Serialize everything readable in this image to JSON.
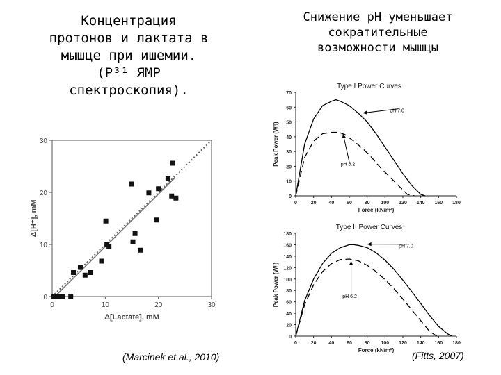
{
  "left_title": {
    "lines": [
      "Концентрация",
      "протонов и лактата в",
      "мышце при ишемии.",
      "(P³¹ ЯМР",
      "спектроскопия)."
    ]
  },
  "right_title": {
    "lines": [
      "Снижение pH уменьшает",
      "сократительные",
      "возможности мышцы"
    ]
  },
  "citations": {
    "left": "(Marcinek et.al., 2010)",
    "right": "(Fitts, 2007)"
  },
  "chart_data": [
    {
      "type": "scatter",
      "title": "",
      "xlabel": "Δ[Lactate], mM",
      "ylabel": "Δ[H⁺], mM",
      "xlim": [
        0,
        30
      ],
      "ylim": [
        0,
        30
      ],
      "xticks": [
        0,
        10,
        20,
        30
      ],
      "yticks": [
        0,
        10,
        20,
        30
      ],
      "grid": false,
      "points": [
        {
          "x": 0.2,
          "y": 0
        },
        {
          "x": 0.6,
          "y": 0
        },
        {
          "x": 1.0,
          "y": 0
        },
        {
          "x": 1.5,
          "y": 0
        },
        {
          "x": 2.0,
          "y": 0
        },
        {
          "x": 3.5,
          "y": 0
        },
        {
          "x": 4.0,
          "y": 4.6
        },
        {
          "x": 5.3,
          "y": 5.6
        },
        {
          "x": 6.2,
          "y": 4.1
        },
        {
          "x": 7.2,
          "y": 4.6
        },
        {
          "x": 9.3,
          "y": 6.8
        },
        {
          "x": 10.1,
          "y": 14.5
        },
        {
          "x": 10.3,
          "y": 10.0
        },
        {
          "x": 10.7,
          "y": 9.6
        },
        {
          "x": 14.9,
          "y": 21.6
        },
        {
          "x": 15.2,
          "y": 10.5
        },
        {
          "x": 15.6,
          "y": 12.1
        },
        {
          "x": 16.6,
          "y": 8.9
        },
        {
          "x": 18.2,
          "y": 19.9
        },
        {
          "x": 19.7,
          "y": 14.7
        },
        {
          "x": 20.0,
          "y": 20.7
        },
        {
          "x": 21.8,
          "y": 22.6
        },
        {
          "x": 22.6,
          "y": 25.6
        },
        {
          "x": 22.5,
          "y": 19.3
        },
        {
          "x": 23.3,
          "y": 18.9
        }
      ],
      "lines": [
        {
          "style": "solid",
          "from": [
            0.5,
            0
          ],
          "to": [
            23,
            22.7
          ]
        },
        {
          "style": "dotted",
          "from": [
            0,
            0
          ],
          "to": [
            30,
            30
          ]
        }
      ]
    },
    {
      "type": "line",
      "title": "Type I Power Curves",
      "xlabel": "Force (kN/m²)",
      "ylabel": "Peak Power (W/l)",
      "xlim": [
        0,
        180
      ],
      "ylim": [
        0,
        70
      ],
      "xticks": [
        0,
        20,
        40,
        60,
        80,
        100,
        120,
        140,
        160,
        180
      ],
      "yticks": [
        0,
        10,
        20,
        30,
        40,
        50,
        60,
        70
      ],
      "series": [
        {
          "name": "pH 7.0",
          "style": "solid",
          "x": [
            0,
            10,
            20,
            30,
            40,
            45,
            50,
            60,
            70,
            80,
            90,
            100,
            110,
            120,
            130,
            140,
            145
          ],
          "values": [
            0,
            35,
            52,
            61,
            64,
            65,
            64,
            61,
            56,
            50,
            42,
            33,
            24,
            15,
            7,
            1,
            0
          ]
        },
        {
          "name": "pH 6.2",
          "style": "dashed",
          "x": [
            0,
            10,
            20,
            30,
            40,
            48,
            55,
            65,
            75,
            85,
            95,
            105,
            115,
            125,
            133
          ],
          "values": [
            0,
            26,
            37,
            42,
            43,
            43,
            41.5,
            37,
            32,
            26,
            19,
            13,
            7,
            1,
            0
          ]
        }
      ],
      "annotations": [
        {
          "text": "pH 7.0",
          "point": [
            75,
            56
          ],
          "label_at": [
            115,
            57
          ]
        },
        {
          "text": "pH 6.2",
          "point": [
            53,
            42
          ],
          "label_at": [
            60,
            21
          ]
        }
      ]
    },
    {
      "type": "line",
      "title": "Type II Power Curves",
      "xlabel": "Force (kN/m²)",
      "ylabel": "Peak Power (W/l)",
      "xlim": [
        0,
        180
      ],
      "ylim": [
        0,
        180
      ],
      "xticks": [
        0,
        20,
        40,
        60,
        80,
        100,
        120,
        140,
        160,
        180
      ],
      "yticks": [
        0,
        20,
        40,
        60,
        80,
        100,
        120,
        140,
        160,
        180
      ],
      "series": [
        {
          "name": "pH 7.0",
          "style": "solid",
          "x": [
            0,
            10,
            20,
            30,
            40,
            50,
            60,
            65,
            70,
            80,
            90,
            100,
            110,
            120,
            130,
            140,
            150,
            160,
            170,
            175
          ],
          "values": [
            0,
            62,
            100,
            127,
            145,
            155,
            160,
            160,
            159,
            155,
            146,
            133,
            117,
            98,
            78,
            57,
            36,
            17,
            4,
            0
          ]
        },
        {
          "name": "pH 6.2",
          "style": "dashed",
          "x": [
            0,
            10,
            20,
            30,
            40,
            50,
            60,
            70,
            80,
            90,
            100,
            110,
            120,
            130,
            140,
            150,
            158
          ],
          "values": [
            0,
            55,
            90,
            113,
            127,
            134,
            135,
            132,
            124,
            113,
            99,
            83,
            65,
            46,
            27,
            8,
            0
          ]
        }
      ],
      "annotations": [
        {
          "text": "pH 7.0",
          "point": [
            80,
            161
          ],
          "label_at": [
            125,
            156
          ]
        },
        {
          "text": "pH 6.2",
          "point": [
            62,
            132
          ],
          "label_at": [
            62,
            68
          ]
        }
      ]
    }
  ]
}
